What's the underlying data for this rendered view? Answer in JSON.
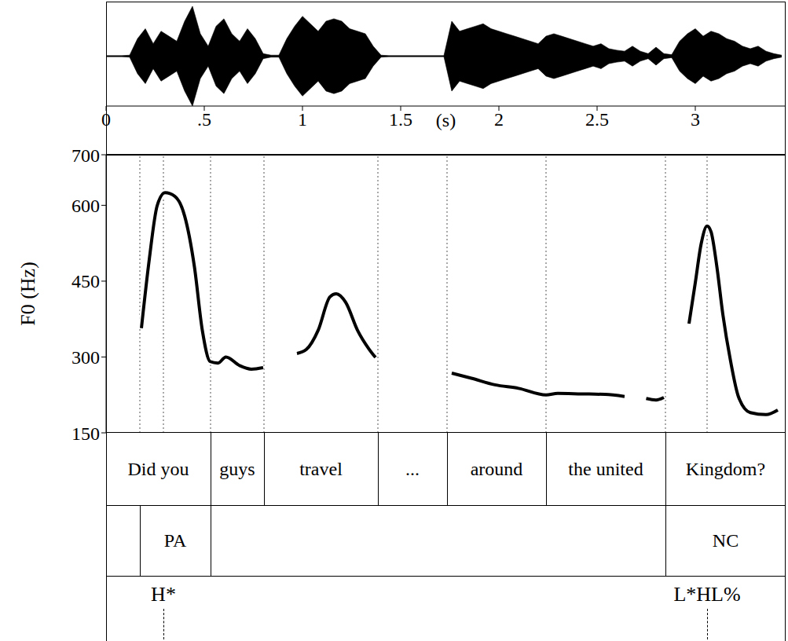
{
  "chart_data": [
    {
      "type": "area",
      "tick_labels": "x",
      "color": "#000000",
      "xlim": [
        0,
        3.46
      ],
      "xticks": [
        0,
        {
          "value": 0.5,
          "label": ".5"
        },
        1,
        1.5,
        2,
        2.5,
        3
      ],
      "x_label": "(s)",
      "ylim": [
        -1,
        1
      ],
      "x": [
        0,
        0.04,
        0.08,
        0.12,
        0.16,
        0.2,
        0.24,
        0.28,
        0.32,
        0.36,
        0.4,
        0.44,
        0.48,
        0.52,
        0.56,
        0.6,
        0.64,
        0.68,
        0.72,
        0.76,
        0.8,
        0.84,
        0.88,
        0.92,
        0.96,
        1.0,
        1.04,
        1.08,
        1.12,
        1.16,
        1.2,
        1.24,
        1.28,
        1.32,
        1.36,
        1.4,
        1.44,
        1.48,
        1.52,
        1.56,
        1.6,
        1.64,
        1.68,
        1.72,
        1.76,
        1.8,
        1.84,
        1.88,
        1.92,
        1.96,
        2.0,
        2.04,
        2.08,
        2.12,
        2.16,
        2.2,
        2.24,
        2.28,
        2.32,
        2.36,
        2.4,
        2.44,
        2.48,
        2.52,
        2.56,
        2.6,
        2.64,
        2.68,
        2.72,
        2.76,
        2.8,
        2.84,
        2.88,
        2.92,
        2.96,
        3.0,
        3.04,
        3.08,
        3.12,
        3.16,
        3.2,
        3.24,
        3.28,
        3.32,
        3.36,
        3.4,
        3.44
      ],
      "values": [
        0.01,
        0.01,
        0.01,
        0.02,
        0.35,
        0.55,
        0.25,
        0.5,
        0.4,
        0.3,
        0.7,
        1.0,
        0.45,
        0.2,
        0.6,
        0.75,
        0.45,
        0.3,
        0.55,
        0.35,
        0.05,
        0.02,
        0.02,
        0.35,
        0.6,
        0.8,
        0.65,
        0.5,
        0.7,
        0.75,
        0.7,
        0.55,
        0.5,
        0.45,
        0.2,
        0.02,
        0.01,
        0.01,
        0.01,
        0.01,
        0.01,
        0.01,
        0.01,
        0.01,
        0.7,
        0.5,
        0.55,
        0.6,
        0.65,
        0.55,
        0.5,
        0.45,
        0.4,
        0.35,
        0.3,
        0.25,
        0.4,
        0.45,
        0.4,
        0.35,
        0.3,
        0.25,
        0.2,
        0.25,
        0.15,
        0.12,
        0.1,
        0.2,
        0.1,
        0.05,
        0.18,
        0.05,
        0.03,
        0.3,
        0.45,
        0.55,
        0.4,
        0.5,
        0.45,
        0.35,
        0.3,
        0.2,
        0.15,
        0.2,
        0.1,
        0.05,
        0.02
      ]
    },
    {
      "type": "line",
      "tick_labels": "y",
      "color": "#000000",
      "y_label": "F0 (Hz)",
      "xlim": [
        0,
        3.46
      ],
      "ylim": [
        150,
        700
      ],
      "yticks": [
        150,
        300,
        450,
        600,
        700
      ],
      "x": [
        0.18,
        0.22,
        0.26,
        0.3,
        0.35,
        0.4,
        0.45,
        0.49,
        0.53,
        0.57,
        0.61,
        0.68,
        0.74,
        0.8,
        0.89,
        0.972,
        1.02,
        1.08,
        1.14,
        1.172,
        1.22,
        1.28,
        1.34,
        1.372,
        1.57,
        1.76,
        1.86,
        1.98,
        2.1,
        2.24,
        2.3,
        2.42,
        2.54,
        2.64,
        2.7,
        2.75,
        2.8,
        2.84,
        2.9,
        2.968,
        3.0,
        3.03,
        3.06,
        3.08,
        3.11,
        3.14,
        3.18,
        3.22,
        3.28,
        3.36,
        3.42
      ],
      "values": [
        357,
        493,
        599,
        625,
        618,
        579,
        478,
        353,
        291,
        288,
        300,
        283,
        276,
        279,
        null,
        307,
        315,
        353,
        419,
        425,
        408,
        353,
        315,
        299,
        null,
        268,
        258,
        245,
        238,
        225,
        228,
        227,
        226,
        222,
        null,
        218,
        215,
        220,
        null,
        366,
        447,
        524,
        559,
        548,
        478,
        385,
        291,
        221,
        190,
        186,
        195
      ]
    }
  ],
  "tiers": [
    {
      "type": "interval",
      "intervals": [
        {
          "start": 0,
          "end": 0.532,
          "label": "Did you"
        },
        {
          "start": 0.532,
          "end": 0.804,
          "label": "guys"
        },
        {
          "start": 0.804,
          "end": 1.384,
          "label": "travel"
        },
        {
          "start": 1.384,
          "end": 1.736,
          "label": "..."
        },
        {
          "start": 1.736,
          "end": 2.24,
          "label": "around"
        },
        {
          "start": 2.24,
          "end": 2.848,
          "label": "the united"
        },
        {
          "start": 2.848,
          "end": 3.46,
          "label": "Kingdom?"
        }
      ]
    },
    {
      "type": "interval",
      "intervals": [
        {
          "start": 0,
          "end": 0.172
        },
        {
          "start": 0.172,
          "end": 0.532,
          "label": "PA"
        },
        {
          "start": 0.532,
          "end": 2.848
        },
        {
          "start": 2.848,
          "end": 3.46,
          "label": "NC"
        }
      ]
    },
    {
      "type": "point",
      "points": [
        {
          "time": 0.292,
          "label": "H*"
        },
        {
          "time": 3.06,
          "label": "L*HL%"
        }
      ]
    }
  ]
}
